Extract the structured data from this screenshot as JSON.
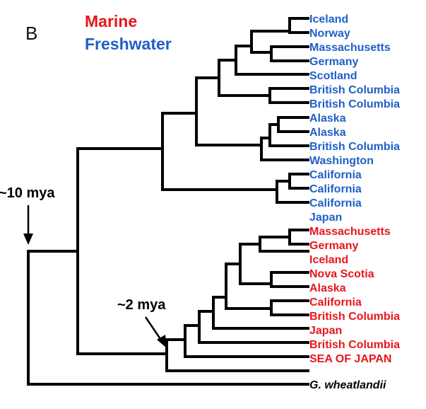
{
  "panel_label": "B",
  "legend": {
    "marine": {
      "label": "Marine",
      "color": "#e8161b"
    },
    "freshwater": {
      "label": "Freshwater",
      "color": "#1f5fc8"
    }
  },
  "annotations": {
    "root_age": "~10 mya",
    "marine_clade_age": "~2 mya"
  },
  "taxa": [
    {
      "label": "Iceland",
      "type": "freshwater"
    },
    {
      "label": "Norway",
      "type": "freshwater"
    },
    {
      "label": "Massachusetts",
      "type": "freshwater"
    },
    {
      "label": "Germany",
      "type": "freshwater"
    },
    {
      "label": "Scotland",
      "type": "freshwater"
    },
    {
      "label": "British Columbia",
      "type": "freshwater"
    },
    {
      "label": "British Columbia",
      "type": "freshwater"
    },
    {
      "label": "Alaska",
      "type": "freshwater"
    },
    {
      "label": "Alaska",
      "type": "freshwater"
    },
    {
      "label": "British Columbia",
      "type": "freshwater"
    },
    {
      "label": "Washington",
      "type": "freshwater"
    },
    {
      "label": "California",
      "type": "freshwater"
    },
    {
      "label": "California",
      "type": "freshwater"
    },
    {
      "label": "California",
      "type": "freshwater"
    },
    {
      "label": "Japan",
      "type": "freshwater"
    },
    {
      "label": "Massachusetts",
      "type": "marine"
    },
    {
      "label": "Germany",
      "type": "marine"
    },
    {
      "label": "Iceland",
      "type": "marine"
    },
    {
      "label": "Nova Scotia",
      "type": "marine"
    },
    {
      "label": "Alaska",
      "type": "marine"
    },
    {
      "label": "California",
      "type": "marine"
    },
    {
      "label": "British Columbia",
      "type": "marine"
    },
    {
      "label": "Japan",
      "type": "marine"
    },
    {
      "label": "British Columbia",
      "type": "marine"
    },
    {
      "label": "SEA OF JAPAN",
      "type": "marine"
    },
    {
      "label": "G. wheatlandii",
      "type": "outgroup"
    }
  ]
}
